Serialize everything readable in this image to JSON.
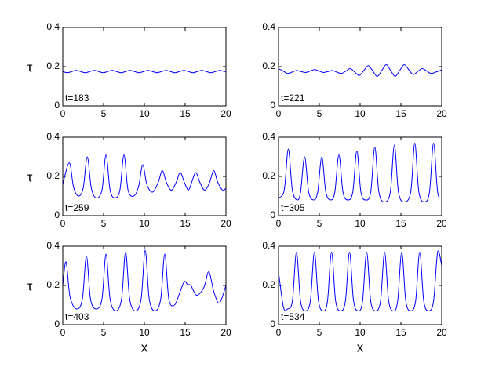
{
  "chart_data": [
    {
      "type": "line",
      "annotation": "t=183",
      "ylabel": "τ",
      "x": [
        0,
        0.55,
        1.1,
        1.65,
        2.2,
        2.75,
        3.3,
        3.85,
        4.4,
        4.95,
        5.5,
        6.05,
        6.6,
        7.15,
        7.7,
        8.25,
        8.8,
        9.35,
        9.9,
        10.45,
        11,
        11.55,
        12.1,
        12.65,
        13.2,
        13.75,
        14.3,
        14.85,
        15.4,
        15.95,
        16.5,
        17.05,
        17.6,
        18.15,
        18.7,
        19.25,
        19.8,
        20
      ],
      "values": [
        0.175,
        0.169,
        0.175,
        0.181,
        0.175,
        0.169,
        0.175,
        0.181,
        0.175,
        0.169,
        0.175,
        0.181,
        0.175,
        0.169,
        0.175,
        0.181,
        0.175,
        0.169,
        0.175,
        0.181,
        0.175,
        0.169,
        0.175,
        0.181,
        0.175,
        0.169,
        0.175,
        0.181,
        0.175,
        0.169,
        0.175,
        0.181,
        0.175,
        0.169,
        0.175,
        0.181,
        0.175,
        0.177
      ],
      "color": "#0000ff",
      "xlim": [
        0,
        20
      ],
      "ylim": [
        0,
        0.4
      ],
      "xticks": [
        0,
        5,
        10,
        15,
        20
      ],
      "yticks": [
        0,
        0.2,
        0.4
      ]
    },
    {
      "type": "line",
      "annotation": "t=221",
      "x": [
        0,
        0.55,
        1.1,
        1.65,
        2.2,
        2.75,
        3.3,
        3.85,
        4.4,
        4.95,
        5.5,
        6.05,
        6.6,
        7.15,
        7.7,
        8.25,
        8.8,
        9.35,
        9.9,
        10.45,
        11,
        11.55,
        12.1,
        12.65,
        13.2,
        13.75,
        14.3,
        14.85,
        15.4,
        15.95,
        16.5,
        17.05,
        17.6,
        18.15,
        18.7,
        19.25,
        19.8,
        20
      ],
      "values": [
        0.19,
        0.178,
        0.165,
        0.172,
        0.18,
        0.175,
        0.17,
        0.177,
        0.185,
        0.178,
        0.17,
        0.175,
        0.18,
        0.172,
        0.165,
        0.177,
        0.19,
        0.172,
        0.155,
        0.18,
        0.205,
        0.178,
        0.15,
        0.18,
        0.21,
        0.18,
        0.15,
        0.18,
        0.21,
        0.185,
        0.16,
        0.175,
        0.19,
        0.178,
        0.165,
        0.172,
        0.18,
        0.185
      ],
      "color": "#0000ff",
      "xlim": [
        0,
        20
      ],
      "ylim": [
        0,
        0.4
      ],
      "xticks": [
        0,
        5,
        10,
        15,
        20
      ],
      "yticks": [
        0,
        0.2,
        0.4
      ]
    },
    {
      "type": "line",
      "annotation": "t=259",
      "ylabel": "τ",
      "x": [
        0,
        0.8,
        1.3,
        1.9,
        2.5,
        3.0,
        3.5,
        4.1,
        4.8,
        5.3,
        5.8,
        6.4,
        7.0,
        7.5,
        8.0,
        8.7,
        9.3,
        9.8,
        10.3,
        11.0,
        11.7,
        12.2,
        12.7,
        13.3,
        13.9,
        14.4,
        14.9,
        15.4,
        15.8,
        16.3,
        16.8,
        17.4,
        18.0,
        18.5,
        19.0,
        19.6,
        20
      ],
      "values": [
        0.16,
        0.27,
        0.15,
        0.1,
        0.14,
        0.3,
        0.14,
        0.09,
        0.13,
        0.31,
        0.13,
        0.09,
        0.13,
        0.31,
        0.13,
        0.1,
        0.15,
        0.26,
        0.16,
        0.12,
        0.17,
        0.23,
        0.17,
        0.13,
        0.17,
        0.22,
        0.17,
        0.13,
        0.17,
        0.22,
        0.17,
        0.13,
        0.17,
        0.23,
        0.17,
        0.13,
        0.14
      ],
      "color": "#0000ff",
      "xlim": [
        0,
        20
      ],
      "ylim": [
        0,
        0.4
      ],
      "xticks": [
        0,
        5,
        10,
        15,
        20
      ],
      "yticks": [
        0,
        0.2,
        0.4
      ]
    },
    {
      "type": "line",
      "annotation": "t=305",
      "x": [
        0,
        0.7,
        1.2,
        1.7,
        2.3,
        2.7,
        3.2,
        3.7,
        4.3,
        4.8,
        5.3,
        5.8,
        6.4,
        6.9,
        7.4,
        7.9,
        8.5,
        9.1,
        9.6,
        10.1,
        10.7,
        11.3,
        11.8,
        12.3,
        13.0,
        13.7,
        14.2,
        14.7,
        15.4,
        16.2,
        16.7,
        17.2,
        17.9,
        18.5,
        19.0,
        19.5,
        20
      ],
      "values": [
        0.09,
        0.13,
        0.34,
        0.13,
        0.08,
        0.12,
        0.3,
        0.12,
        0.08,
        0.12,
        0.3,
        0.12,
        0.08,
        0.12,
        0.31,
        0.12,
        0.08,
        0.12,
        0.33,
        0.12,
        0.08,
        0.12,
        0.35,
        0.12,
        0.07,
        0.12,
        0.36,
        0.12,
        0.07,
        0.12,
        0.37,
        0.12,
        0.07,
        0.12,
        0.37,
        0.12,
        0.09
      ],
      "color": "#0000ff",
      "xlim": [
        0,
        20
      ],
      "ylim": [
        0,
        0.4
      ],
      "xticks": [
        0,
        5,
        10,
        15,
        20
      ],
      "yticks": [
        0,
        0.2,
        0.4
      ]
    },
    {
      "type": "line",
      "annotation": "t=403",
      "ylabel": "τ",
      "xlabel": "x",
      "x": [
        0,
        0.4,
        0.9,
        1.7,
        2.4,
        2.9,
        3.4,
        4.1,
        4.8,
        5.3,
        5.8,
        6.5,
        7.2,
        7.7,
        8.2,
        8.9,
        9.6,
        10.1,
        10.6,
        11.3,
        12.0,
        12.5,
        13.0,
        13.7,
        14.4,
        14.9,
        15.3,
        15.7,
        16.4,
        17.3,
        17.9,
        18.5,
        19.2,
        20
      ],
      "values": [
        0.2,
        0.32,
        0.14,
        0.08,
        0.13,
        0.35,
        0.13,
        0.08,
        0.13,
        0.36,
        0.13,
        0.07,
        0.13,
        0.37,
        0.13,
        0.07,
        0.13,
        0.38,
        0.13,
        0.07,
        0.13,
        0.36,
        0.13,
        0.1,
        0.17,
        0.22,
        0.205,
        0.2,
        0.15,
        0.19,
        0.27,
        0.17,
        0.11,
        0.2
      ],
      "color": "#0000ff",
      "xlim": [
        0,
        20
      ],
      "ylim": [
        0,
        0.4
      ],
      "xticks": [
        0,
        5,
        10,
        15,
        20
      ],
      "yticks": [
        0,
        0.2,
        0.4
      ]
    },
    {
      "type": "line",
      "annotation": "t=534",
      "xlabel": "x",
      "x": [
        0,
        0.6,
        1.1,
        1.7,
        2.2,
        2.7,
        3.3,
        3.9,
        4.4,
        4.9,
        5.5,
        6.0,
        6.5,
        7.0,
        7.6,
        8.2,
        8.7,
        9.2,
        9.8,
        10.3,
        10.8,
        11.3,
        11.9,
        12.5,
        13.0,
        13.5,
        14.1,
        14.6,
        15.1,
        15.6,
        16.2,
        16.8,
        17.3,
        17.8,
        18.4,
        19.0,
        19.5,
        20
      ],
      "values": [
        0.27,
        0.09,
        0.08,
        0.12,
        0.37,
        0.12,
        0.07,
        0.12,
        0.37,
        0.12,
        0.07,
        0.12,
        0.37,
        0.12,
        0.07,
        0.12,
        0.37,
        0.12,
        0.07,
        0.12,
        0.37,
        0.12,
        0.07,
        0.12,
        0.37,
        0.12,
        0.07,
        0.12,
        0.37,
        0.12,
        0.07,
        0.12,
        0.37,
        0.12,
        0.07,
        0.12,
        0.37,
        0.3
      ],
      "color": "#0000ff",
      "xlim": [
        0,
        20
      ],
      "ylim": [
        0,
        0.4
      ],
      "xticks": [
        0,
        5,
        10,
        15,
        20
      ],
      "yticks": [
        0,
        0.2,
        0.4
      ]
    }
  ]
}
